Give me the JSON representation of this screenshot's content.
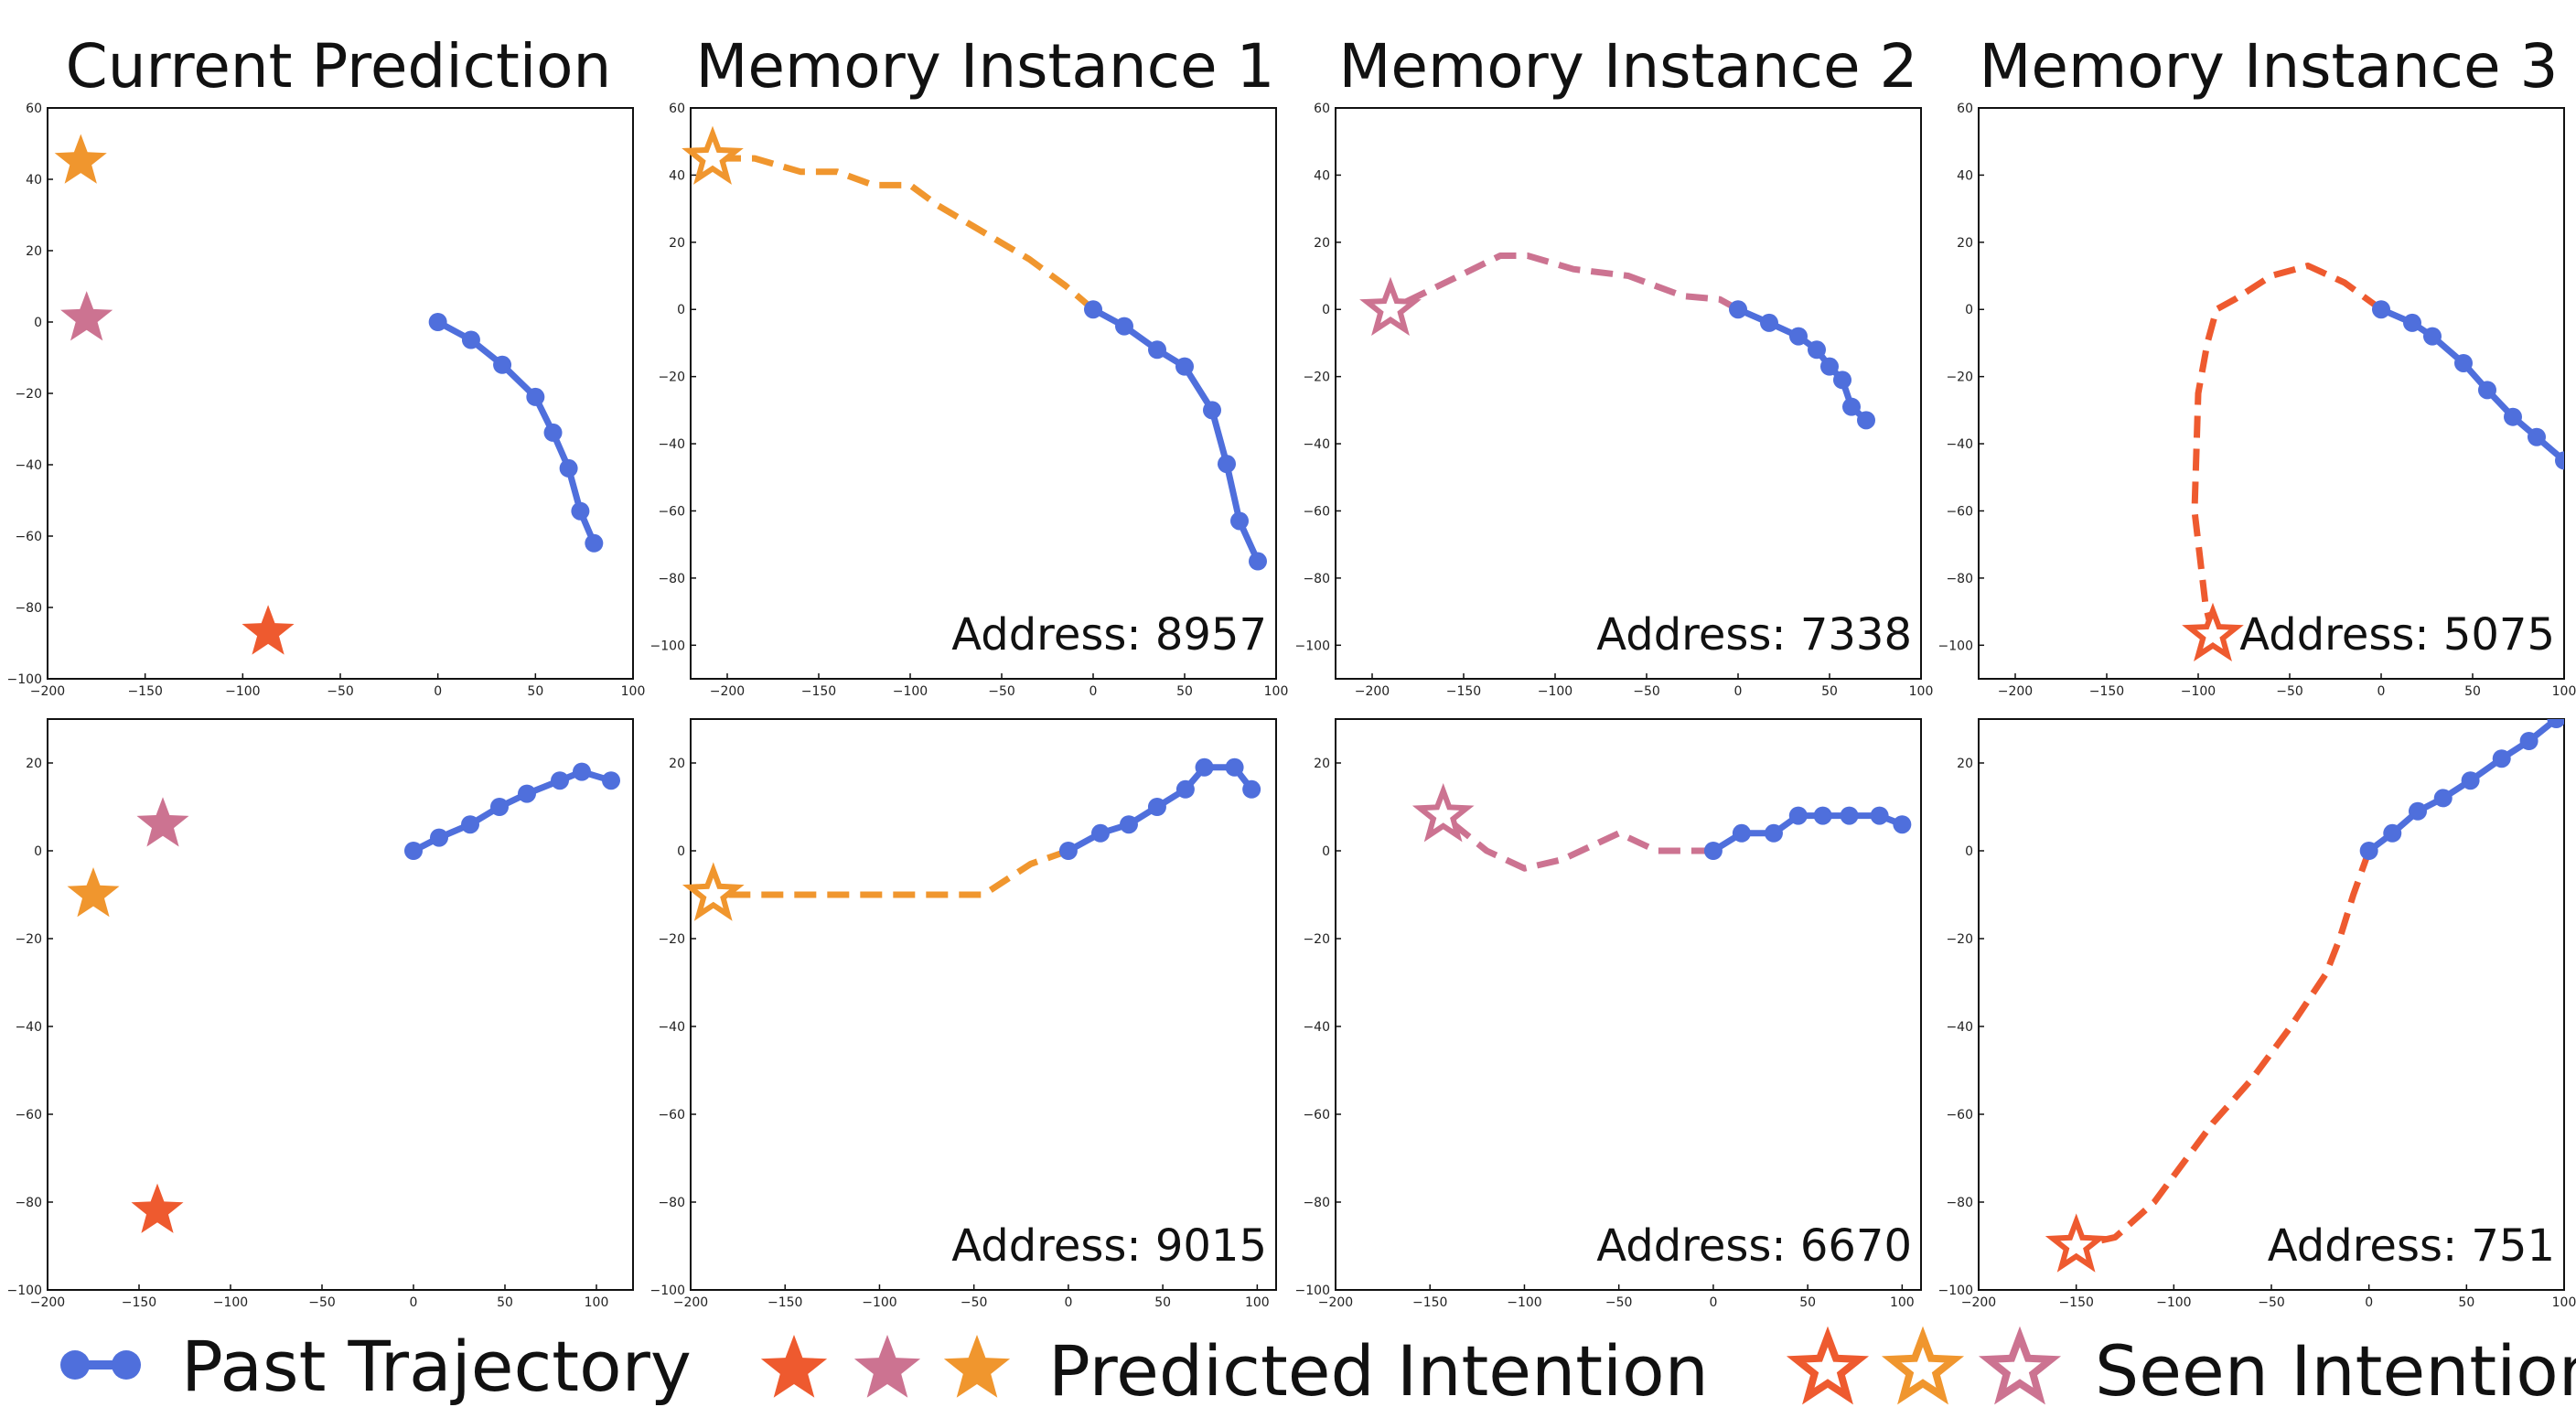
{
  "colors": {
    "past": "#4f6fdc",
    "red": "#ee5a2f",
    "pink": "#cc7391",
    "orange": "#f0962e",
    "frame": "#111111"
  },
  "column_titles": [
    "Current Prediction",
    "Memory Instance 1",
    "Memory Instance 2",
    "Memory Instance 3"
  ],
  "legend": {
    "past_label": "Past Trajectory",
    "predicted_label": "Predicted Intention",
    "seen_label": "Seen Intention",
    "predicted_star_colors": [
      "red",
      "pink",
      "orange"
    ],
    "seen_star_colors": [
      "red",
      "orange",
      "pink"
    ]
  },
  "chart_data": [
    {
      "type": "line",
      "row": 0,
      "col": 0,
      "title": "Current Prediction",
      "xlim": [
        -200,
        100
      ],
      "ylim": [
        -100,
        60
      ],
      "xticks": [
        -200,
        -150,
        -100,
        -50,
        0,
        50,
        100
      ],
      "yticks": [
        60,
        40,
        20,
        0,
        -20,
        -40,
        -60,
        -80,
        -100
      ],
      "past": [
        [
          0,
          0
        ],
        [
          17,
          -5
        ],
        [
          33,
          -12
        ],
        [
          50,
          -21
        ],
        [
          59,
          -31
        ],
        [
          67,
          -41
        ],
        [
          73,
          -53
        ],
        [
          80,
          -62
        ]
      ],
      "predicted_intentions": [
        {
          "color": "orange",
          "x": -183,
          "y": 45
        },
        {
          "color": "pink",
          "x": -180,
          "y": 1
        },
        {
          "color": "red",
          "x": -87,
          "y": -87
        }
      ]
    },
    {
      "type": "line",
      "row": 0,
      "col": 1,
      "title": "Memory Instance 1",
      "xlim": [
        -220,
        100
      ],
      "ylim": [
        -110,
        60
      ],
      "xticks": [
        -200,
        -150,
        -100,
        -50,
        0,
        50,
        100
      ],
      "yticks": [
        60,
        40,
        20,
        0,
        -20,
        -40,
        -60,
        -80,
        -100
      ],
      "past": [
        [
          0,
          0
        ],
        [
          17,
          -5
        ],
        [
          35,
          -12
        ],
        [
          50,
          -17
        ],
        [
          65,
          -30
        ],
        [
          73,
          -46
        ],
        [
          80,
          -63
        ],
        [
          90,
          -75
        ]
      ],
      "future": [
        [
          0,
          0
        ],
        [
          -15,
          7
        ],
        [
          -35,
          15
        ],
        [
          -60,
          23
        ],
        [
          -85,
          31
        ],
        [
          -100,
          37
        ],
        [
          -120,
          37
        ],
        [
          -140,
          41
        ],
        [
          -160,
          41
        ],
        [
          -185,
          45
        ],
        [
          -208,
          45
        ]
      ],
      "future_color": "orange",
      "seen_intention": {
        "color": "orange",
        "x": -208,
        "y": 45
      },
      "address": "Address: 8957"
    },
    {
      "type": "line",
      "row": 0,
      "col": 2,
      "title": "Memory Instance 2",
      "xlim": [
        -220,
        100
      ],
      "ylim": [
        -110,
        60
      ],
      "xticks": [
        -200,
        -150,
        -100,
        -50,
        0,
        50,
        100
      ],
      "yticks": [
        60,
        40,
        20,
        0,
        -20,
        -40,
        -60,
        -80,
        -100
      ],
      "past": [
        [
          0,
          0
        ],
        [
          17,
          -4
        ],
        [
          33,
          -8
        ],
        [
          43,
          -12
        ],
        [
          50,
          -17
        ],
        [
          57,
          -21
        ],
        [
          62,
          -29
        ],
        [
          70,
          -33
        ]
      ],
      "future": [
        [
          0,
          0
        ],
        [
          -10,
          3
        ],
        [
          -30,
          4
        ],
        [
          -60,
          10
        ],
        [
          -90,
          12
        ],
        [
          -115,
          16
        ],
        [
          -130,
          16
        ],
        [
          -160,
          8
        ],
        [
          -190,
          0
        ]
      ],
      "future_color": "pink",
      "seen_intention": {
        "color": "pink",
        "x": -190,
        "y": 0
      },
      "address": "Address: 7338"
    },
    {
      "type": "line",
      "row": 0,
      "col": 3,
      "title": "Memory Instance 3",
      "xlim": [
        -220,
        100
      ],
      "ylim": [
        -110,
        60
      ],
      "xticks": [
        -200,
        -150,
        -100,
        -50,
        0,
        50,
        100
      ],
      "yticks": [
        60,
        40,
        20,
        0,
        -20,
        -40,
        -60,
        -80,
        -100
      ],
      "past": [
        [
          0,
          0
        ],
        [
          17,
          -4
        ],
        [
          28,
          -8
        ],
        [
          45,
          -16
        ],
        [
          58,
          -24
        ],
        [
          72,
          -32
        ],
        [
          85,
          -38
        ],
        [
          100,
          -45
        ]
      ],
      "future": [
        [
          0,
          0
        ],
        [
          -20,
          8
        ],
        [
          -40,
          13
        ],
        [
          -60,
          10
        ],
        [
          -80,
          3
        ],
        [
          -90,
          0
        ],
        [
          -95,
          -10
        ],
        [
          -100,
          -25
        ],
        [
          -102,
          -60
        ],
        [
          -96,
          -88
        ],
        [
          -92,
          -97
        ]
      ],
      "future_color": "red",
      "seen_intention": {
        "color": "red",
        "x": -92,
        "y": -97
      },
      "address": "Address: 5075"
    },
    {
      "type": "line",
      "row": 1,
      "col": 0,
      "xlim": [
        -200,
        120
      ],
      "ylim": [
        -100,
        30
      ],
      "xticks": [
        -200,
        -150,
        -100,
        -50,
        0,
        50,
        100
      ],
      "yticks": [
        20,
        0,
        -20,
        -40,
        -60,
        -80,
        -100
      ],
      "past": [
        [
          0,
          0
        ],
        [
          14,
          3
        ],
        [
          31,
          6
        ],
        [
          47,
          10
        ],
        [
          62,
          13
        ],
        [
          80,
          16
        ],
        [
          92,
          18
        ],
        [
          108,
          16
        ]
      ],
      "predicted_intentions": [
        {
          "color": "pink",
          "x": -137,
          "y": 6
        },
        {
          "color": "orange",
          "x": -175,
          "y": -10
        },
        {
          "color": "red",
          "x": -140,
          "y": -82
        }
      ]
    },
    {
      "type": "line",
      "row": 1,
      "col": 1,
      "xlim": [
        -200,
        110
      ],
      "ylim": [
        -100,
        30
      ],
      "xticks": [
        -200,
        -150,
        -100,
        -50,
        0,
        50,
        100
      ],
      "yticks": [
        20,
        0,
        -20,
        -40,
        -60,
        -80,
        -100
      ],
      "past": [
        [
          0,
          0
        ],
        [
          17,
          4
        ],
        [
          32,
          6
        ],
        [
          47,
          10
        ],
        [
          62,
          14
        ],
        [
          72,
          19
        ],
        [
          88,
          19
        ],
        [
          97,
          14
        ]
      ],
      "future": [
        [
          0,
          0
        ],
        [
          -20,
          -3
        ],
        [
          -45,
          -10
        ],
        [
          -80,
          -10
        ],
        [
          -120,
          -10
        ],
        [
          -160,
          -10
        ],
        [
          -188,
          -10
        ]
      ],
      "future_color": "orange",
      "seen_intention": {
        "color": "orange",
        "x": -188,
        "y": -10
      },
      "address": "Address: 9015"
    },
    {
      "type": "line",
      "row": 1,
      "col": 2,
      "xlim": [
        -200,
        110
      ],
      "ylim": [
        -100,
        30
      ],
      "xticks": [
        -200,
        -150,
        -100,
        -50,
        0,
        50,
        100
      ],
      "yticks": [
        20,
        0,
        -20,
        -40,
        -60,
        -80,
        -100
      ],
      "past": [
        [
          0,
          0
        ],
        [
          15,
          4
        ],
        [
          32,
          4
        ],
        [
          45,
          8
        ],
        [
          58,
          8
        ],
        [
          72,
          8
        ],
        [
          88,
          8
        ],
        [
          100,
          6
        ]
      ],
      "future": [
        [
          0,
          0
        ],
        [
          -30,
          0
        ],
        [
          -50,
          4
        ],
        [
          -80,
          -2
        ],
        [
          -100,
          -4
        ],
        [
          -120,
          0
        ],
        [
          -143,
          8
        ]
      ],
      "future_color": "pink",
      "seen_intention": {
        "color": "pink",
        "x": -143,
        "y": 8
      },
      "address": "Address: 6670"
    },
    {
      "type": "line",
      "row": 1,
      "col": 3,
      "xlim": [
        -200,
        100
      ],
      "ylim": [
        -100,
        30
      ],
      "xticks": [
        -200,
        -150,
        -100,
        -50,
        0,
        50,
        100
      ],
      "yticks": [
        20,
        0,
        -20,
        -40,
        -60,
        -80,
        -100
      ],
      "past": [
        [
          0,
          0
        ],
        [
          12,
          4
        ],
        [
          25,
          9
        ],
        [
          38,
          12
        ],
        [
          52,
          16
        ],
        [
          68,
          21
        ],
        [
          82,
          25
        ],
        [
          96,
          30
        ]
      ],
      "future": [
        [
          0,
          0
        ],
        [
          -8,
          -10
        ],
        [
          -15,
          -20
        ],
        [
          -22,
          -28
        ],
        [
          -40,
          -40
        ],
        [
          -60,
          -52
        ],
        [
          -80,
          -62
        ],
        [
          -110,
          -80
        ],
        [
          -130,
          -88
        ],
        [
          -150,
          -90
        ]
      ],
      "future_color": "red",
      "seen_intention": {
        "color": "red",
        "x": -150,
        "y": -90
      },
      "address": "Address: 751"
    }
  ]
}
